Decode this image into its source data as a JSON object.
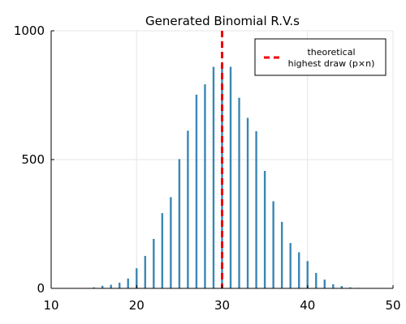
{
  "chart_data": {
    "type": "bar",
    "title": "Generated Binomial R.V.s",
    "xlabel": "",
    "ylabel": "",
    "xlim": [
      10,
      50
    ],
    "ylim": [
      0,
      1000
    ],
    "xticks": [
      10,
      20,
      30,
      40,
      50
    ],
    "yticks": [
      0,
      500,
      1000
    ],
    "grid": true,
    "bar_color": "#3b87b4",
    "x": [
      14,
      15,
      16,
      17,
      18,
      19,
      20,
      21,
      22,
      23,
      24,
      25,
      26,
      27,
      28,
      29,
      30,
      31,
      32,
      33,
      34,
      35,
      36,
      37,
      38,
      39,
      40,
      41,
      42,
      43,
      44,
      45,
      46,
      47
    ],
    "values": [
      1,
      4,
      10,
      14,
      22,
      38,
      78,
      126,
      192,
      292,
      354,
      502,
      612,
      752,
      792,
      860,
      870,
      860,
      740,
      662,
      610,
      456,
      338,
      258,
      176,
      140,
      106,
      60,
      34,
      16,
      9,
      4,
      2,
      1
    ],
    "reference_line": {
      "x": 30,
      "color": "#ee0000",
      "style": "dashed",
      "label": "theoretical highest draw (p×n)"
    },
    "legend": {
      "placement": "top-right",
      "entries": [
        {
          "label_line1": "theoretical",
          "label_line2": "highest draw (p×n)",
          "color": "#ee0000",
          "style": "dashed"
        }
      ]
    }
  }
}
